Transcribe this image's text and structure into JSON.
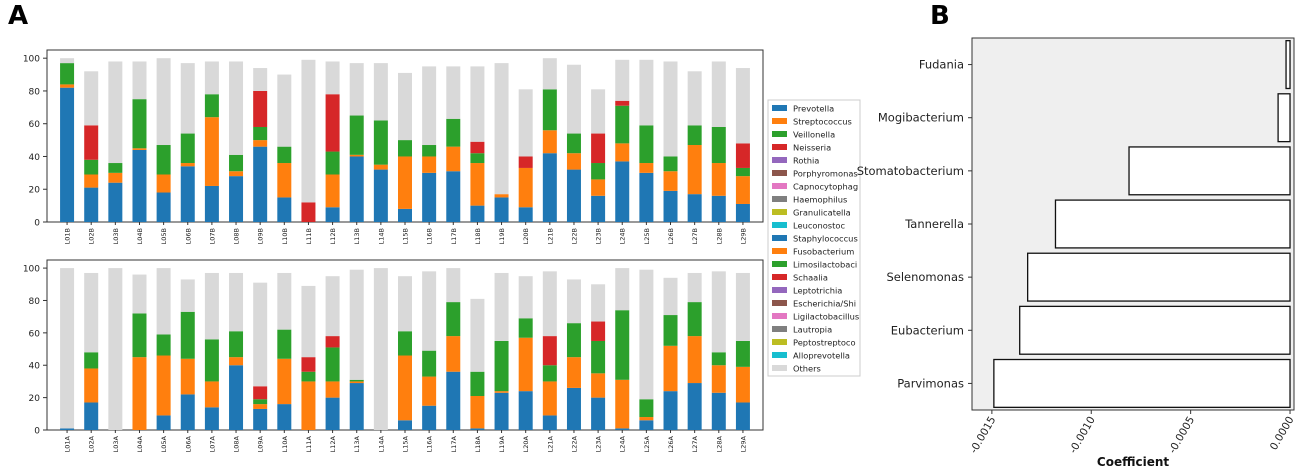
{
  "chart_data": [
    {
      "panel": "A",
      "type": "bar",
      "stacked": true,
      "subplots": [
        {
          "categories": [
            "L01B",
            "L02B",
            "L03B",
            "L04B",
            "L05B",
            "L06B",
            "L07B",
            "L08B",
            "L09B",
            "L10B",
            "L11B",
            "L12B",
            "L13B",
            "L14B",
            "L15B",
            "L16B",
            "L17B",
            "L18B",
            "L19B",
            "L20B",
            "L21B",
            "L22B",
            "L23B",
            "L24B",
            "L25B",
            "L26B",
            "L27B",
            "L28B",
            "L29B"
          ],
          "yticks": [
            0,
            20,
            40,
            60,
            80,
            100
          ],
          "ylim": [
            0,
            105
          ],
          "series_values": [
            [
              82,
              21,
              24,
              44,
              18,
              34,
              22,
              28,
              46,
              15,
              0,
              9,
              40,
              32,
              8,
              30,
              31,
              10,
              15,
              9,
              42,
              32,
              16,
              37,
              30,
              19,
              17,
              16,
              11
            ],
            [
              2,
              8,
              6,
              1,
              11,
              2,
              42,
              3,
              4,
              21,
              0,
              20,
              1,
              3,
              32,
              10,
              15,
              26,
              2,
              24,
              14,
              10,
              10,
              11,
              6,
              12,
              30,
              20,
              17
            ],
            [
              13,
              9,
              6,
              30,
              18,
              18,
              14,
              10,
              8,
              10,
              0,
              14,
              24,
              27,
              10,
              7,
              17,
              6,
              0,
              0,
              25,
              12,
              10,
              23,
              23,
              9,
              12,
              22,
              5
            ],
            [
              0,
              21,
              0,
              0,
              0,
              0,
              0,
              0,
              22,
              0,
              12,
              35,
              0,
              0,
              0,
              0,
              0,
              7,
              0,
              7,
              0,
              0,
              18,
              3,
              0,
              0,
              0,
              0,
              15
            ]
          ],
          "totals": [
            100,
            92,
            98,
            98,
            100,
            97,
            98,
            98,
            94,
            90,
            99,
            98,
            97,
            97,
            91,
            95,
            95,
            95,
            97,
            81,
            100,
            96,
            81,
            99,
            99,
            98,
            92,
            98,
            94
          ]
        },
        {
          "categories": [
            "L01A",
            "L02A",
            "L03A",
            "L04A",
            "L05A",
            "L06A",
            "L07A",
            "L08A",
            "L09A",
            "L10A",
            "L11A",
            "L12A",
            "L13A",
            "L14A",
            "L15A",
            "L16A",
            "L17A",
            "L18A",
            "L19A",
            "L20A",
            "L21A",
            "L22A",
            "L23A",
            "L24A",
            "L25A",
            "L26A",
            "L27A",
            "L28A",
            "L29A"
          ],
          "yticks": [
            0,
            20,
            40,
            60,
            80,
            100
          ],
          "ylim": [
            0,
            105
          ],
          "series_values": [
            [
              1,
              17,
              0,
              0,
              9,
              22,
              14,
              40,
              13,
              16,
              0,
              20,
              29,
              0,
              6,
              15,
              36,
              1,
              23,
              24,
              9,
              26,
              20,
              1,
              6,
              24,
              29,
              23,
              17
            ],
            [
              0,
              21,
              0,
              45,
              37,
              22,
              16,
              5,
              3,
              28,
              30,
              10,
              1,
              0,
              40,
              18,
              22,
              20,
              1,
              33,
              21,
              19,
              15,
              30,
              2,
              28,
              29,
              17,
              22
            ],
            [
              0,
              10,
              0,
              27,
              13,
              29,
              26,
              16,
              3,
              18,
              6,
              21,
              1,
              0,
              15,
              16,
              21,
              15,
              31,
              12,
              10,
              21,
              20,
              43,
              11,
              19,
              21,
              8,
              16
            ],
            [
              0,
              0,
              0,
              0,
              0,
              0,
              0,
              0,
              8,
              0,
              9,
              7,
              0,
              0,
              0,
              0,
              0,
              0,
              0,
              0,
              18,
              0,
              12,
              0,
              0,
              0,
              0,
              0,
              0
            ]
          ],
          "totals": [
            100,
            97,
            100,
            96,
            100,
            93,
            97,
            97,
            91,
            97,
            89,
            95,
            99,
            100,
            95,
            98,
            100,
            81,
            97,
            95,
            98,
            93,
            90,
            100,
            99,
            94,
            97,
            98,
            97
          ]
        }
      ],
      "legend": [
        "Prevotella",
        "Streptococcus",
        "Veillonella",
        "Neisseria",
        "Rothia",
        "Porphyromonas",
        "Capnocytophaga",
        "Haemophilus",
        "Granulicatella",
        "Leuconostoc",
        "Staphylococcus",
        "Fusobacterium",
        "Limosilactobacillus",
        "Schaalia",
        "Leptotrichia",
        "Escherichia/Shigella",
        "Ligilactobacillus",
        "Lautropia",
        "Peptostreptococcus",
        "Alloprevotella",
        "Others"
      ],
      "legend_display": [
        "Prevotella",
        "Streptococcus",
        "Veillonella",
        "Neisseria",
        "Rothia",
        "Porphyromonas",
        "Capnocytophag",
        "Haemophilus",
        "Granulicatella",
        "Leuconostoc",
        "Staphylococcus",
        "Fusobacterium",
        "Limosilactobaci",
        "Schaalia",
        "Leptotrichia",
        "Escherichia/Shi",
        "Ligilactobacillus",
        "Lautropia",
        "Peptostreptoco",
        "Alloprevotella",
        "Others"
      ],
      "colors": [
        "#1f77b4",
        "#ff7f0e",
        "#2ca02c",
        "#d62728",
        "#9467bd",
        "#8c564b",
        "#e377c2",
        "#7f7f7f",
        "#bcbd22",
        "#17becf",
        "#1f77b4",
        "#ff7f0e",
        "#2ca02c",
        "#d62728",
        "#9467bd",
        "#8c564b",
        "#e377c2",
        "#7f7f7f",
        "#bcbd22",
        "#17becf",
        "#d9d9d9"
      ],
      "legend_placement": "right"
    },
    {
      "panel": "B",
      "type": "bar",
      "orientation": "horizontal",
      "categories": [
        "Fudania",
        "Mogibacterium",
        "Stomatobacterium",
        "Tannerella",
        "Selenomonas",
        "Eubacterium",
        "Parvimonas"
      ],
      "values": [
        -2e-05,
        -6e-05,
        -0.00081,
        -0.00118,
        -0.00132,
        -0.00136,
        -0.00149
      ],
      "xlim": [
        -0.0016,
        2e-05
      ],
      "xticks": [
        -0.0015,
        -0.001,
        -0.0005,
        0
      ],
      "xtick_labels": [
        "-0.0015",
        "-0.0010",
        "-0.0005",
        "0.0000"
      ],
      "xlabel": "Coefficient",
      "ylabel": ""
    }
  ],
  "labels": {
    "panel_a": "A",
    "panel_b": "B"
  }
}
